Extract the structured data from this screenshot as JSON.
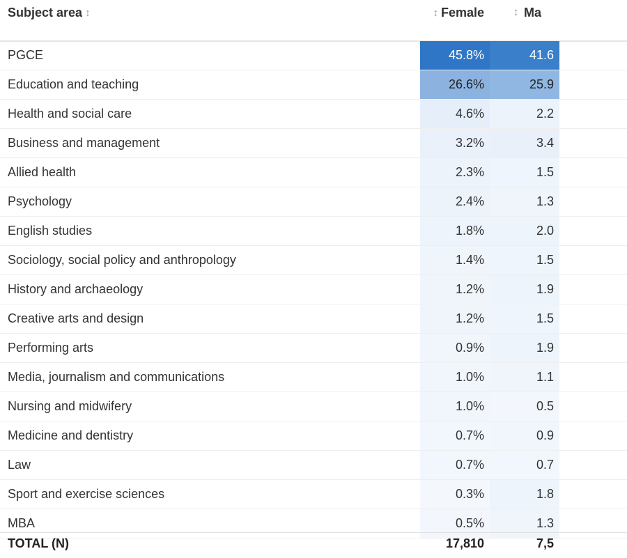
{
  "header": {
    "subject_label": "Subject area",
    "female_label": "Female",
    "male_label": "Ma"
  },
  "rows": [
    {
      "subject": "PGCE",
      "female": "45.8%",
      "male": "41.6",
      "female_bg": "#2f77c6",
      "male_bg": "#3a7fca",
      "female_fg": "#ffffff",
      "male_fg": "#ffffff"
    },
    {
      "subject": "Education and teaching",
      "female": "26.6%",
      "male": "25.9",
      "female_bg": "#8cb3e0",
      "male_bg": "#90b7e1",
      "female_fg": "#222222",
      "male_fg": "#222222"
    },
    {
      "subject": "Health and social care",
      "female": "4.6%",
      "male": "2.2",
      "female_bg": "#e6eff9",
      "male_bg": "#edf3fb",
      "female_fg": "#333333",
      "male_fg": "#333333"
    },
    {
      "subject": "Business and management",
      "female": "3.2%",
      "male": "3.4",
      "female_bg": "#eaf1fa",
      "male_bg": "#e9f0fa",
      "female_fg": "#333333",
      "male_fg": "#333333"
    },
    {
      "subject": "Allied health",
      "female": "2.3%",
      "male": "1.5",
      "female_bg": "#edf3fb",
      "male_bg": "#eff5fc",
      "female_fg": "#333333",
      "male_fg": "#333333"
    },
    {
      "subject": "Psychology",
      "female": "2.4%",
      "male": "1.3",
      "female_bg": "#edf3fb",
      "male_bg": "#f0f5fc",
      "female_fg": "#333333",
      "male_fg": "#333333"
    },
    {
      "subject": "English studies",
      "female": "1.8%",
      "male": "2.0",
      "female_bg": "#eef4fb",
      "male_bg": "#eef4fb",
      "female_fg": "#333333",
      "male_fg": "#333333"
    },
    {
      "subject": "Sociology, social policy and anthropology",
      "female": "1.4%",
      "male": "1.5",
      "female_bg": "#f0f5fc",
      "male_bg": "#eff5fc",
      "female_fg": "#333333",
      "male_fg": "#333333"
    },
    {
      "subject": "History and archaeology",
      "female": "1.2%",
      "male": "1.9",
      "female_bg": "#f0f5fc",
      "male_bg": "#eef4fb",
      "female_fg": "#333333",
      "male_fg": "#333333"
    },
    {
      "subject": "Creative arts and design",
      "female": "1.2%",
      "male": "1.5",
      "female_bg": "#f0f5fc",
      "male_bg": "#eff5fc",
      "female_fg": "#333333",
      "male_fg": "#333333"
    },
    {
      "subject": "Performing arts",
      "female": "0.9%",
      "male": "1.9",
      "female_bg": "#f1f6fc",
      "male_bg": "#eef4fb",
      "female_fg": "#333333",
      "male_fg": "#333333"
    },
    {
      "subject": "Media, journalism and communications",
      "female": "1.0%",
      "male": "1.1",
      "female_bg": "#f1f6fc",
      "male_bg": "#f0f5fc",
      "female_fg": "#333333",
      "male_fg": "#333333"
    },
    {
      "subject": "Nursing and midwifery",
      "female": "1.0%",
      "male": "0.5",
      "female_bg": "#f1f6fc",
      "male_bg": "#f3f7fd",
      "female_fg": "#333333",
      "male_fg": "#333333"
    },
    {
      "subject": "Medicine and dentistry",
      "female": "0.7%",
      "male": "0.9",
      "female_bg": "#f2f7fd",
      "male_bg": "#f1f6fc",
      "female_fg": "#333333",
      "male_fg": "#333333"
    },
    {
      "subject": "Law",
      "female": "0.7%",
      "male": "0.7",
      "female_bg": "#f2f7fd",
      "male_bg": "#f2f7fd",
      "female_fg": "#333333",
      "male_fg": "#333333"
    },
    {
      "subject": "Sport and exercise sciences",
      "female": "0.3%",
      "male": "1.8",
      "female_bg": "#f4f8fd",
      "male_bg": "#eef4fb",
      "female_fg": "#333333",
      "male_fg": "#333333"
    },
    {
      "subject": "MBA",
      "female": "0.5%",
      "male": "1.3",
      "female_bg": "#f3f7fd",
      "male_bg": "#f0f5fc",
      "female_fg": "#333333",
      "male_fg": "#333333"
    }
  ],
  "total": {
    "label": "TOTAL (N)",
    "female": "17,810",
    "male": "7,5"
  },
  "icons": {
    "sort": "↕"
  }
}
